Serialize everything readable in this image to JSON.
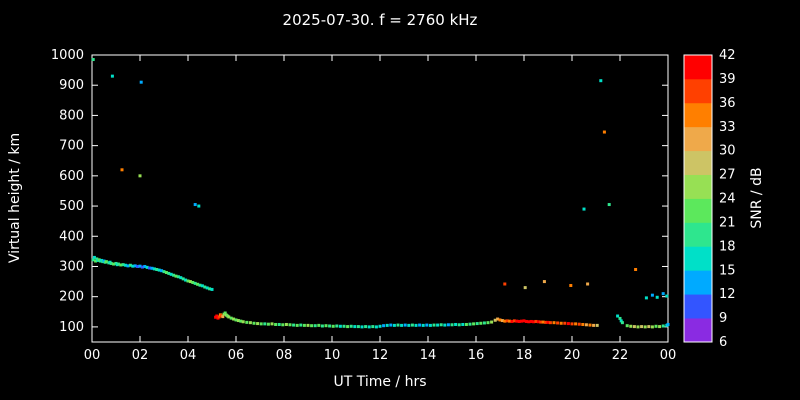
{
  "chart_data": {
    "type": "scatter",
    "title": "2025-07-30. f = 2760 kHz",
    "xlabel": "UT Time / hrs",
    "ylabel": "Virtual height / km",
    "colorbar_label": "SNR / dB",
    "xlim": [
      0,
      24
    ],
    "ylim": [
      50,
      1000
    ],
    "grid": false,
    "background": "#000000",
    "frame_color": "#ffffff",
    "text_color": "#ffffff",
    "xticks": [
      {
        "v": 0,
        "label": "00"
      },
      {
        "v": 2,
        "label": "02"
      },
      {
        "v": 4,
        "label": "04"
      },
      {
        "v": 6,
        "label": "06"
      },
      {
        "v": 8,
        "label": "08"
      },
      {
        "v": 10,
        "label": "10"
      },
      {
        "v": 12,
        "label": "12"
      },
      {
        "v": 14,
        "label": "14"
      },
      {
        "v": 16,
        "label": "16"
      },
      {
        "v": 18,
        "label": "18"
      },
      {
        "v": 20,
        "label": "20"
      },
      {
        "v": 22,
        "label": "22"
      },
      {
        "v": 24,
        "label": "00"
      }
    ],
    "yticks": [
      100,
      200,
      300,
      400,
      500,
      600,
      700,
      800,
      900,
      1000
    ],
    "colorbar": {
      "min": 6,
      "max": 42,
      "step": 3,
      "ticks": [
        6,
        9,
        12,
        15,
        18,
        21,
        24,
        27,
        30,
        33,
        36,
        39,
        42
      ],
      "colors_low_to_high": [
        "#8a2be2",
        "#3355ff",
        "#00aaff",
        "#00e0c8",
        "#2ee68e",
        "#5ce85c",
        "#97e054",
        "#cdc465",
        "#efa94a",
        "#ff7f00",
        "#ff4000",
        "#ff0000"
      ]
    },
    "points": [
      [
        0.05,
        985,
        18
      ],
      [
        0.85,
        930,
        15
      ],
      [
        2.05,
        910,
        12
      ],
      [
        1.25,
        620,
        33
      ],
      [
        2.0,
        600,
        24
      ],
      [
        4.3,
        505,
        12
      ],
      [
        4.45,
        500,
        15
      ],
      [
        20.5,
        490,
        15
      ],
      [
        21.2,
        915,
        15
      ],
      [
        21.35,
        745,
        33
      ],
      [
        21.55,
        505,
        18
      ],
      [
        22.65,
        290,
        33
      ],
      [
        17.2,
        242,
        36
      ],
      [
        18.05,
        230,
        27
      ],
      [
        18.85,
        250,
        30
      ],
      [
        19.95,
        237,
        33
      ],
      [
        20.65,
        242,
        30
      ],
      [
        23.1,
        196,
        15
      ],
      [
        23.35,
        205,
        12
      ],
      [
        23.55,
        198,
        15
      ],
      [
        23.8,
        210,
        12
      ],
      [
        23.95,
        202,
        15
      ],
      [
        0.05,
        322,
        18
      ],
      [
        0.1,
        330,
        15
      ],
      [
        0.15,
        318,
        21
      ],
      [
        0.2,
        325,
        18
      ],
      [
        0.25,
        320,
        15
      ],
      [
        0.3,
        322,
        21
      ],
      [
        0.35,
        318,
        18
      ],
      [
        0.4,
        320,
        15
      ],
      [
        0.45,
        316,
        18
      ],
      [
        0.5,
        318,
        12
      ],
      [
        0.55,
        314,
        18
      ],
      [
        0.6,
        316,
        21
      ],
      [
        0.7,
        312,
        18
      ],
      [
        0.75,
        314,
        15
      ],
      [
        0.8,
        310,
        18
      ],
      [
        0.9,
        308,
        21
      ],
      [
        1.0,
        310,
        18
      ],
      [
        1.05,
        306,
        15
      ],
      [
        1.1,
        308,
        18
      ],
      [
        1.2,
        305,
        21
      ],
      [
        1.3,
        306,
        18
      ],
      [
        1.4,
        304,
        15
      ],
      [
        1.5,
        302,
        12
      ],
      [
        1.6,
        304,
        18
      ],
      [
        1.7,
        301,
        15
      ],
      [
        1.8,
        302,
        12
      ],
      [
        1.9,
        300,
        9
      ],
      [
        2.0,
        301,
        12
      ],
      [
        2.1,
        298,
        9
      ],
      [
        2.2,
        300,
        12
      ],
      [
        2.3,
        297,
        15
      ],
      [
        2.4,
        295,
        9
      ],
      [
        2.5,
        294,
        12
      ],
      [
        2.6,
        292,
        15
      ],
      [
        2.7,
        290,
        18
      ],
      [
        2.8,
        288,
        15
      ],
      [
        2.9,
        286,
        12
      ],
      [
        3.0,
        283,
        18
      ],
      [
        3.1,
        280,
        21
      ],
      [
        3.2,
        277,
        18
      ],
      [
        3.3,
        274,
        15
      ],
      [
        3.4,
        271,
        18
      ],
      [
        3.5,
        268,
        21
      ],
      [
        3.6,
        266,
        18
      ],
      [
        3.7,
        263,
        15
      ],
      [
        3.8,
        259,
        18
      ],
      [
        3.9,
        255,
        15
      ],
      [
        4.0,
        252,
        21
      ],
      [
        4.1,
        250,
        24
      ],
      [
        4.2,
        247,
        21
      ],
      [
        4.3,
        244,
        18
      ],
      [
        4.4,
        241,
        21
      ],
      [
        4.5,
        238,
        18
      ],
      [
        4.6,
        236,
        15
      ],
      [
        4.7,
        232,
        18
      ],
      [
        4.8,
        229,
        15
      ],
      [
        4.9,
        226,
        18
      ],
      [
        5.0,
        224,
        15
      ],
      [
        5.15,
        132,
        39
      ],
      [
        5.2,
        136,
        42
      ],
      [
        5.25,
        129,
        39
      ],
      [
        5.3,
        133,
        36
      ],
      [
        5.35,
        140,
        33
      ],
      [
        5.4,
        137,
        36
      ],
      [
        5.45,
        134,
        30
      ],
      [
        5.5,
        142,
        24
      ],
      [
        5.55,
        146,
        21
      ],
      [
        5.6,
        139,
        24
      ],
      [
        5.65,
        136,
        21
      ],
      [
        5.7,
        133,
        24
      ],
      [
        5.8,
        129,
        21
      ],
      [
        5.9,
        126,
        24
      ],
      [
        6.0,
        123,
        21
      ],
      [
        6.1,
        121,
        24
      ],
      [
        6.2,
        119,
        21
      ],
      [
        6.3,
        117,
        24
      ],
      [
        6.45,
        115,
        21
      ],
      [
        6.6,
        114,
        24
      ],
      [
        6.75,
        112,
        21
      ],
      [
        6.9,
        111,
        24
      ],
      [
        7.05,
        110,
        21
      ],
      [
        7.2,
        110,
        18
      ],
      [
        7.35,
        109,
        21
      ],
      [
        7.5,
        110,
        24
      ],
      [
        7.65,
        108,
        21
      ],
      [
        7.8,
        108,
        18
      ],
      [
        7.95,
        107,
        21
      ],
      [
        8.1,
        108,
        24
      ],
      [
        8.25,
        107,
        21
      ],
      [
        8.4,
        106,
        18
      ],
      [
        8.55,
        105,
        21
      ],
      [
        8.7,
        106,
        18
      ],
      [
        8.85,
        105,
        21
      ],
      [
        9.0,
        105,
        24
      ],
      [
        9.15,
        104,
        21
      ],
      [
        9.3,
        104,
        18
      ],
      [
        9.45,
        105,
        21
      ],
      [
        9.6,
        103,
        18
      ],
      [
        9.75,
        104,
        21
      ],
      [
        9.9,
        103,
        18
      ],
      [
        10.05,
        102,
        21
      ],
      [
        10.2,
        103,
        18
      ],
      [
        10.35,
        102,
        15
      ],
      [
        10.5,
        102,
        18
      ],
      [
        10.65,
        101,
        21
      ],
      [
        10.8,
        102,
        18
      ],
      [
        10.95,
        101,
        15
      ],
      [
        11.1,
        101,
        18
      ],
      [
        11.25,
        100,
        15
      ],
      [
        11.4,
        101,
        18
      ],
      [
        11.55,
        100,
        15
      ],
      [
        11.7,
        101,
        18
      ],
      [
        11.85,
        100,
        15
      ],
      [
        12.0,
        102,
        15
      ],
      [
        12.15,
        104,
        12
      ],
      [
        12.3,
        105,
        15
      ],
      [
        12.45,
        106,
        12
      ],
      [
        12.6,
        105,
        15
      ],
      [
        12.75,
        106,
        18
      ],
      [
        12.9,
        105,
        15
      ],
      [
        13.05,
        106,
        12
      ],
      [
        13.2,
        105,
        15
      ],
      [
        13.35,
        106,
        18
      ],
      [
        13.5,
        105,
        15
      ],
      [
        13.65,
        106,
        12
      ],
      [
        13.8,
        105,
        15
      ],
      [
        13.95,
        106,
        12
      ],
      [
        14.1,
        105,
        15
      ],
      [
        14.25,
        106,
        18
      ],
      [
        14.4,
        106,
        15
      ],
      [
        14.55,
        107,
        18
      ],
      [
        14.7,
        106,
        15
      ],
      [
        14.85,
        107,
        12
      ],
      [
        15.0,
        107,
        18
      ],
      [
        15.15,
        108,
        15
      ],
      [
        15.3,
        107,
        18
      ],
      [
        15.45,
        108,
        15
      ],
      [
        15.6,
        108,
        21
      ],
      [
        15.75,
        109,
        18
      ],
      [
        15.9,
        110,
        21
      ],
      [
        16.05,
        111,
        18
      ],
      [
        16.2,
        112,
        21
      ],
      [
        16.35,
        113,
        18
      ],
      [
        16.5,
        114,
        21
      ],
      [
        16.65,
        116,
        24
      ],
      [
        16.8,
        122,
        27
      ],
      [
        16.9,
        126,
        30
      ],
      [
        17.0,
        123,
        33
      ],
      [
        17.1,
        121,
        30
      ],
      [
        17.2,
        119,
        33
      ],
      [
        17.3,
        120,
        36
      ],
      [
        17.4,
        119,
        33
      ],
      [
        17.5,
        118,
        39
      ],
      [
        17.6,
        120,
        36
      ],
      [
        17.7,
        119,
        42
      ],
      [
        17.8,
        118,
        39
      ],
      [
        17.9,
        119,
        42
      ],
      [
        18.0,
        120,
        39
      ],
      [
        18.1,
        118,
        42
      ],
      [
        18.2,
        117,
        39
      ],
      [
        18.3,
        118,
        42
      ],
      [
        18.4,
        117,
        39
      ],
      [
        18.5,
        118,
        36
      ],
      [
        18.6,
        117,
        39
      ],
      [
        18.7,
        116,
        36
      ],
      [
        18.8,
        116,
        33
      ],
      [
        18.9,
        115,
        36
      ],
      [
        19.0,
        115,
        39
      ],
      [
        19.1,
        114,
        36
      ],
      [
        19.25,
        114,
        33
      ],
      [
        19.4,
        113,
        36
      ],
      [
        19.55,
        112,
        33
      ],
      [
        19.7,
        112,
        36
      ],
      [
        19.85,
        111,
        39
      ],
      [
        20.0,
        110,
        36
      ],
      [
        20.15,
        110,
        33
      ],
      [
        20.3,
        109,
        36
      ],
      [
        20.45,
        108,
        33
      ],
      [
        20.6,
        107,
        30
      ],
      [
        20.75,
        106,
        33
      ],
      [
        20.9,
        105,
        30
      ],
      [
        21.05,
        105,
        27
      ],
      [
        21.9,
        136,
        15
      ],
      [
        22.0,
        128,
        18
      ],
      [
        22.05,
        120,
        15
      ],
      [
        22.1,
        114,
        18
      ],
      [
        22.3,
        104,
        21
      ],
      [
        22.45,
        102,
        24
      ],
      [
        22.6,
        101,
        27
      ],
      [
        22.75,
        100,
        24
      ],
      [
        22.9,
        101,
        27
      ],
      [
        23.05,
        100,
        24
      ],
      [
        23.2,
        101,
        27
      ],
      [
        23.35,
        100,
        24
      ],
      [
        23.5,
        102,
        21
      ],
      [
        23.65,
        101,
        24
      ],
      [
        23.8,
        103,
        18
      ],
      [
        23.95,
        105,
        15
      ],
      [
        24.0,
        108,
        12
      ]
    ]
  }
}
